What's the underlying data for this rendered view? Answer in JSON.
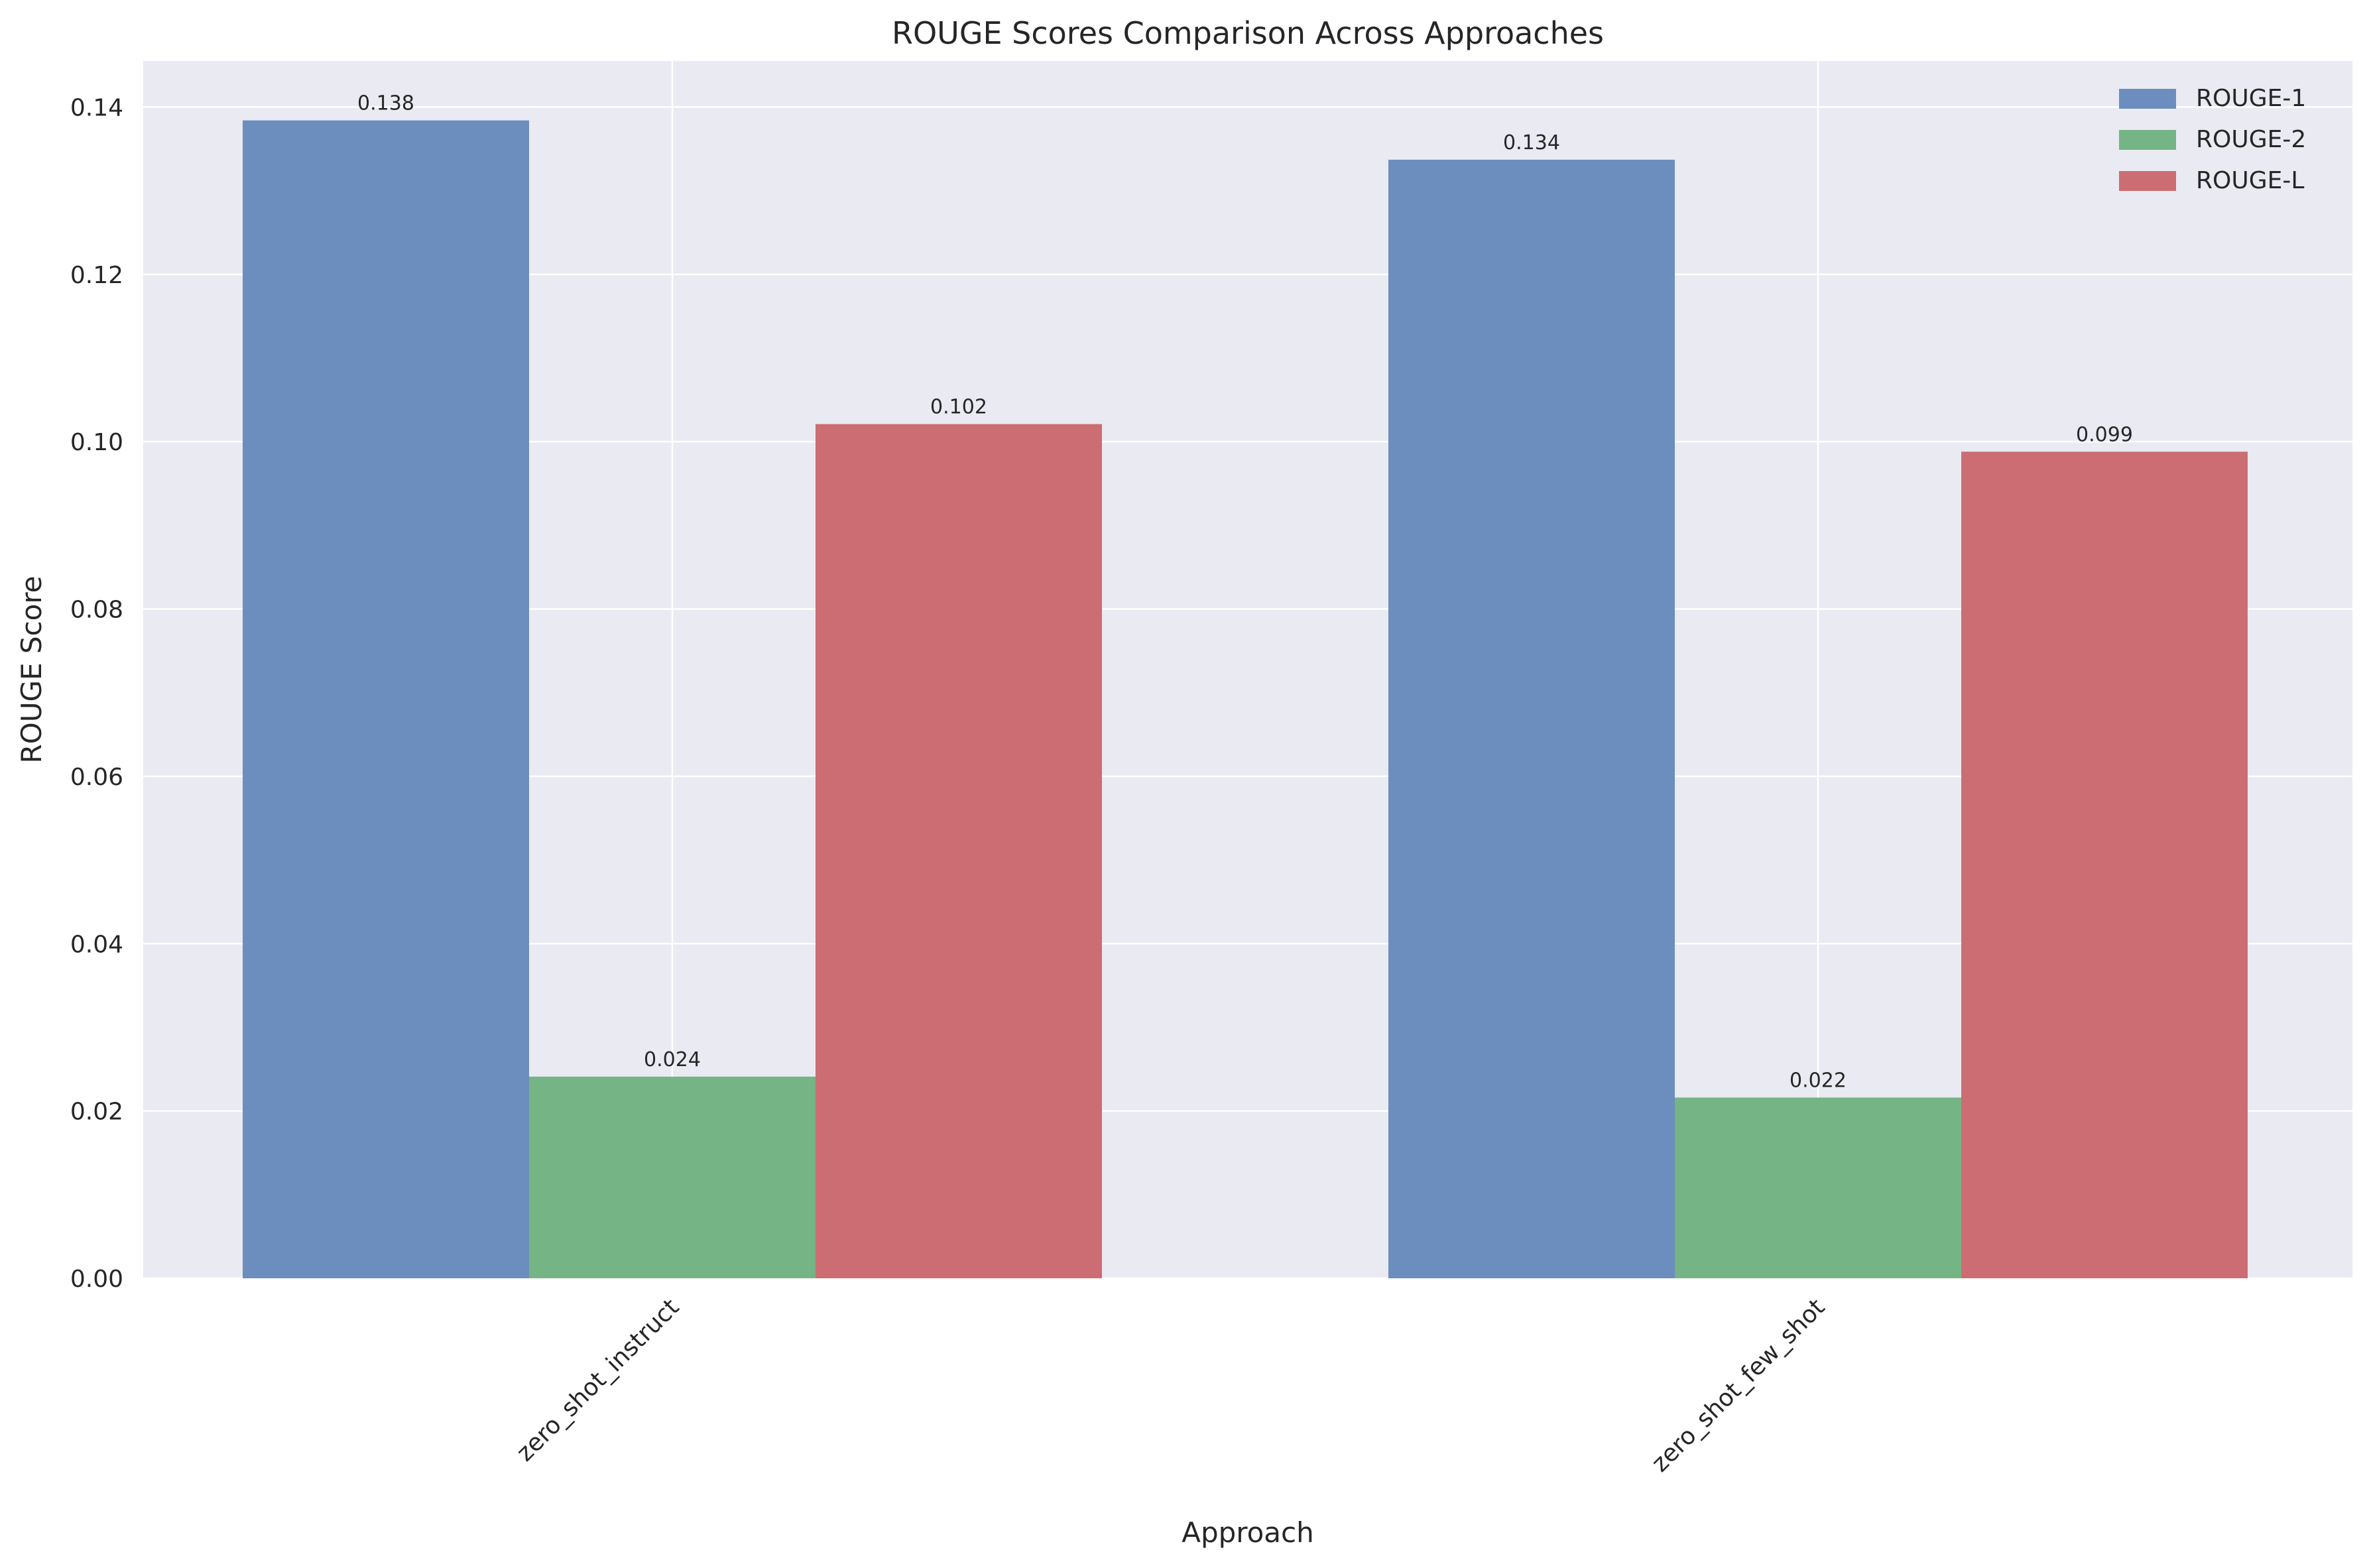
{
  "chart_data": {
    "type": "bar",
    "title": "ROUGE Scores Comparison Across Approaches",
    "xlabel": "Approach",
    "ylabel": "ROUGE Score",
    "categories": [
      "zero_shot_instruct",
      "zero_shot_few_shot"
    ],
    "series": [
      {
        "name": "ROUGE-1",
        "values": [
          0.1384,
          0.1337
        ],
        "labels": [
          "0.138",
          "0.134"
        ],
        "color": "#6c8ebf"
      },
      {
        "name": "ROUGE-2",
        "values": [
          0.0241,
          0.0216
        ],
        "labels": [
          "0.024",
          "0.022"
        ],
        "color": "#75b485"
      },
      {
        "name": "ROUGE-L",
        "values": [
          0.1021,
          0.0988
        ],
        "labels": [
          "0.102",
          "0.099"
        ],
        "color": "#cb6d72"
      }
    ],
    "ylim": [
      0,
      0.1455
    ],
    "yticks": [
      "0.00",
      "0.02",
      "0.04",
      "0.06",
      "0.08",
      "0.10",
      "0.12",
      "0.14"
    ],
    "ytick_values": [
      0,
      0.02,
      0.04,
      0.06,
      0.08,
      0.1,
      0.12,
      0.14
    ],
    "grid": true,
    "legend_position": "top-right",
    "background_color": "#eaeaf2",
    "grid_color": "#ffffff",
    "text_color": "#262626"
  }
}
